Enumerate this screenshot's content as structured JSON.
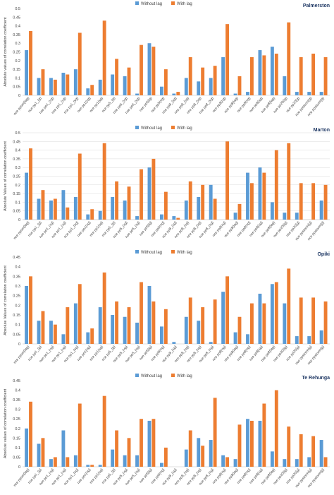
{
  "colors": {
    "without_lag": "#5b9bd5",
    "with_lag": "#ed7d31",
    "grid": "#d9d9d9",
    "axis_text": "#404040"
  },
  "legend": {
    "without_lag": "Without lag",
    "with_lag": "With lag"
  },
  "chart_data": [
    {
      "type": "bar",
      "title": "Palmerston",
      "ylabel": "Absolute values of correlation coefficient",
      "xlabel": "",
      "ylim": [
        0,
        0.5
      ],
      "yticks": [
        "0",
        "0.05",
        "0.1",
        "0.15",
        "0.2",
        "0.25",
        "0.3",
        "0.35",
        "0.4",
        "0.45",
        "0.5"
      ],
      "legend_position": "top-center",
      "grid": false,
      "categories": [
        "nce ppsm(lag)",
        "nce pp1_(g)",
        "nce pp1_(vg)",
        "nce pp1_(vg)",
        "nce pp1_(sg)",
        "nce pp1(ng)",
        "nce pp1(sg)",
        "nce pp5_(g)",
        "nce pp5_(vg)",
        "nce pp5_(sg)",
        "nce pp5(lg)",
        "nce pp5(ng)",
        "nce pp8_(sg)",
        "nce pp8_(vg)",
        "nce pp8_(vg)",
        "nce pp8_(sg)",
        "nce pp8(ng)",
        "nce pp8(lag)",
        "nce pp8(ng)",
        "nce pp8(sg)",
        "nce pp8(lag)",
        "nce pp20(lg)",
        "nce pp20(g)",
        "nce ppstorm(g)",
        "nce ppstorm(g)"
      ],
      "series": [
        {
          "name": "Without lag",
          "values": [
            0.26,
            0.1,
            0.1,
            0.13,
            0.15,
            0.04,
            0.09,
            0.12,
            0.11,
            0.01,
            0.3,
            0.05,
            0.01,
            0.1,
            0.08,
            0.1,
            0.22,
            0.01,
            0.02,
            0.26,
            0.28,
            0.11,
            0.02,
            0.02,
            0.02
          ]
        },
        {
          "name": "With lag",
          "values": [
            0.37,
            0.15,
            0.09,
            0.12,
            0.36,
            0.06,
            0.43,
            0.21,
            0.16,
            0.29,
            0.28,
            0.15,
            0.02,
            0.22,
            0.16,
            0.17,
            0.41,
            0.11,
            0.22,
            0.23,
            0.24,
            0.42,
            0.22,
            0.24,
            0.22
          ]
        }
      ]
    },
    {
      "type": "bar",
      "title": "Marton",
      "ylabel": "Absolute Values of correlation coefficient",
      "xlabel": "",
      "ylim": [
        0,
        0.5
      ],
      "yticks": [
        "0",
        "0.05",
        "0.1",
        "0.15",
        "0.2",
        "0.25",
        "0.3",
        "0.35",
        "0.4",
        "0.45",
        "0.5"
      ],
      "legend_position": "top-center",
      "grid": true,
      "categories": [
        "nce ppsm(lag)",
        "nce pp1_(g)",
        "nce pp1_(vg)",
        "nce pp1_(vg)",
        "nce pp1_(sg)",
        "nce pp1(ng)",
        "nce pp1(sg)",
        "nce pp5_(g)",
        "nce pp5_(vg)",
        "nce pp5_(sg)",
        "nce pp5(lg)",
        "nce pp5(ng)",
        "nce pp8_(sg)",
        "nce pp8_(vg)",
        "nce pp8_(vg)",
        "nce pp8_(sg)",
        "nce pp8(ng)",
        "nce pp8(lag)",
        "nce pp8(ng)",
        "nce pp8(sg)",
        "nce pp8(lag)",
        "nce pp20(lg)",
        "nce pp20(g)",
        "nce ppstorm(g)",
        "nce ppstorm(g)"
      ],
      "series": [
        {
          "name": "Without lag",
          "values": [
            0.27,
            0.12,
            0.11,
            0.17,
            0.13,
            0.03,
            0.05,
            0.13,
            0.11,
            0.02,
            0.3,
            0.03,
            0.02,
            0.11,
            0.13,
            0.2,
            0.0,
            0.04,
            0.27,
            0.3,
            0.1,
            0.04,
            0.04,
            0.0,
            0.11
          ]
        },
        {
          "name": "With lag",
          "values": [
            0.41,
            0.17,
            0.12,
            0.07,
            0.38,
            0.06,
            0.44,
            0.22,
            0.19,
            0.29,
            0.35,
            0.16,
            0.01,
            0.22,
            0.2,
            0.12,
            0.45,
            0.09,
            0.21,
            0.27,
            0.4,
            0.44,
            0.21,
            0.21,
            0.2
          ]
        }
      ]
    },
    {
      "type": "bar",
      "title": "Opiki",
      "ylabel": "Absolute Values of correlation coefficient",
      "xlabel": "",
      "ylim": [
        0,
        0.45
      ],
      "yticks": [
        "0",
        "0.05",
        "0.1",
        "0.15",
        "0.2",
        "0.25",
        "0.3",
        "0.35",
        "0.4",
        "0.45"
      ],
      "legend_position": "top-center",
      "grid": false,
      "categories": [
        "nce ppsm(lag)",
        "nce pp1_(g)",
        "nce pp1_(vg)",
        "nce pp1_(vg)",
        "nce pp1_(sg)",
        "nce pp1(ng)",
        "nce pp1(sg)",
        "nce pp5_(g)",
        "nce pp5_(vg)",
        "nce pp5_(sg)",
        "nce pp5(lg)",
        "nce pp5(ng)",
        "nce pp8_(sg)",
        "nce pp8_(vg)",
        "nce pp8_(vg)",
        "nce pp8_(sg)",
        "nce pp8(ng)",
        "nce pp8(lag)",
        "nce pp8(ng)",
        "nce pp8(sg)",
        "nce pp8(lag)",
        "nce pp20(lg)",
        "nce pp20(g)",
        "nce ppstorm(g)",
        "nce ppstorm(g)"
      ],
      "series": [
        {
          "name": "Without lag",
          "values": [
            0.3,
            0.12,
            0.12,
            0.05,
            0.21,
            0.06,
            0.19,
            0.15,
            0.14,
            0.11,
            0.3,
            0.09,
            0.01,
            0.14,
            0.12,
            0.01,
            0.27,
            0.06,
            0.05,
            0.26,
            0.31,
            0.21,
            0.04,
            0.04,
            0.07
          ]
        },
        {
          "name": "With lag",
          "values": [
            0.35,
            0.17,
            0.1,
            0.19,
            0.31,
            0.08,
            0.37,
            0.22,
            0.19,
            0.32,
            0.22,
            0.18,
            0.0,
            0.24,
            0.19,
            0.23,
            0.35,
            0.14,
            0.21,
            0.21,
            0.32,
            0.39,
            0.24,
            0.24,
            0.22
          ]
        }
      ]
    },
    {
      "type": "bar",
      "title": "Te Rehunga",
      "ylabel": "Absolute values of correlation coefficient",
      "xlabel": "",
      "ylim": [
        0,
        0.45
      ],
      "yticks": [
        "0",
        "0.05",
        "0.1",
        "0.15",
        "0.2",
        "0.25",
        "0.3",
        "0.35",
        "0.4",
        "0.45"
      ],
      "legend_position": "top-center",
      "grid": false,
      "categories": [
        "nce ppsm(lag)",
        "nce pp1_(g)",
        "nce pp1_(vg)",
        "nce pp1_(vg)",
        "nce pp1_(sg)",
        "nce pp1(ng)",
        "nce pp1(sg)",
        "nce pp5_(g)",
        "nce pp5_(vg)",
        "nce pp5_(sg)",
        "nce pp5(lg)",
        "nce pp5(ng)",
        "nce pp8_(sg)",
        "nce pp8_(vg)",
        "nce pp8_(vg)",
        "nce pp8_(sg)",
        "nce pp8(ng)",
        "nce pp8(lag)",
        "nce pp8(ng)",
        "nce pp8(sg)",
        "nce pp8(lag)",
        "nce pp20(lg)",
        "nce pp20(g)",
        "nce ppstorm(g)",
        "nce ppstorm(g)"
      ],
      "series": [
        {
          "name": "Without lag",
          "values": [
            0.2,
            0.12,
            0.04,
            0.19,
            0.06,
            0.01,
            0.01,
            0.09,
            0.06,
            0.06,
            0.24,
            0.02,
            0.0,
            0.09,
            0.15,
            0.14,
            0.06,
            0.04,
            0.25,
            0.24,
            0.08,
            0.04,
            0.04,
            0.05,
            0.14
          ]
        },
        {
          "name": "With lag",
          "values": [
            0.34,
            0.15,
            0.05,
            0.05,
            0.33,
            0.01,
            0.37,
            0.19,
            0.15,
            0.25,
            0.25,
            0.1,
            0.0,
            0.19,
            0.11,
            0.36,
            0.05,
            0.22,
            0.24,
            0.33,
            0.4,
            0.21,
            0.17,
            0.16,
            0.05
          ]
        }
      ]
    }
  ]
}
